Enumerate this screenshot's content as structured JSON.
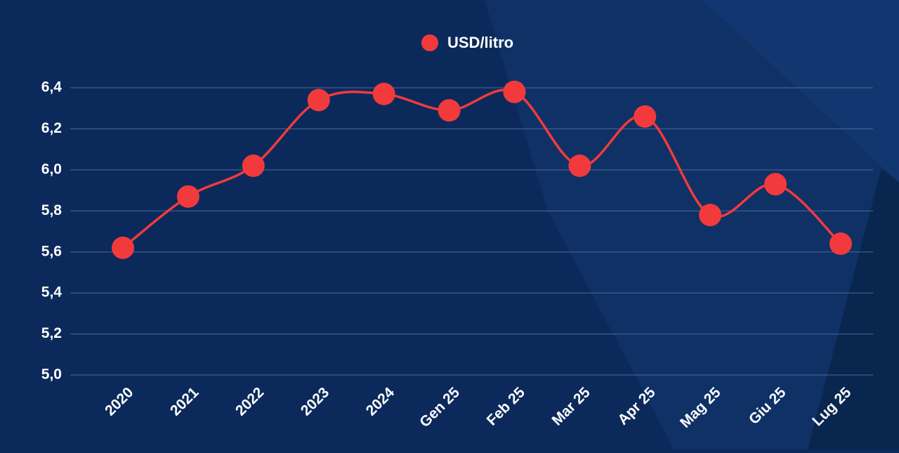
{
  "chart_data": {
    "type": "line",
    "categories": [
      "2020",
      "2021",
      "2022",
      "2023",
      "2024",
      "Gen 25",
      "Feb 25",
      "Mar 25",
      "Apr 25",
      "Mag 25",
      "Giu 25",
      "Lug 25"
    ],
    "series": [
      {
        "name": "USD/litro",
        "color": "#f23a3c",
        "values": [
          5.62,
          5.87,
          6.02,
          6.34,
          6.37,
          6.29,
          6.38,
          6.02,
          6.26,
          5.78,
          5.93,
          5.64
        ]
      }
    ],
    "ylim": [
      5.0,
      6.4
    ],
    "yticks": [
      {
        "value": 5.0,
        "label": "5,0"
      },
      {
        "value": 5.2,
        "label": "5,2"
      },
      {
        "value": 5.4,
        "label": "5,4"
      },
      {
        "value": 5.6,
        "label": "5,6"
      },
      {
        "value": 5.8,
        "label": "5,8"
      },
      {
        "value": 6.0,
        "label": "6,0"
      },
      {
        "value": 6.2,
        "label": "6,2"
      },
      {
        "value": 6.4,
        "label": "6,4"
      }
    ],
    "grid": true,
    "legend": "top",
    "smooth": true
  }
}
